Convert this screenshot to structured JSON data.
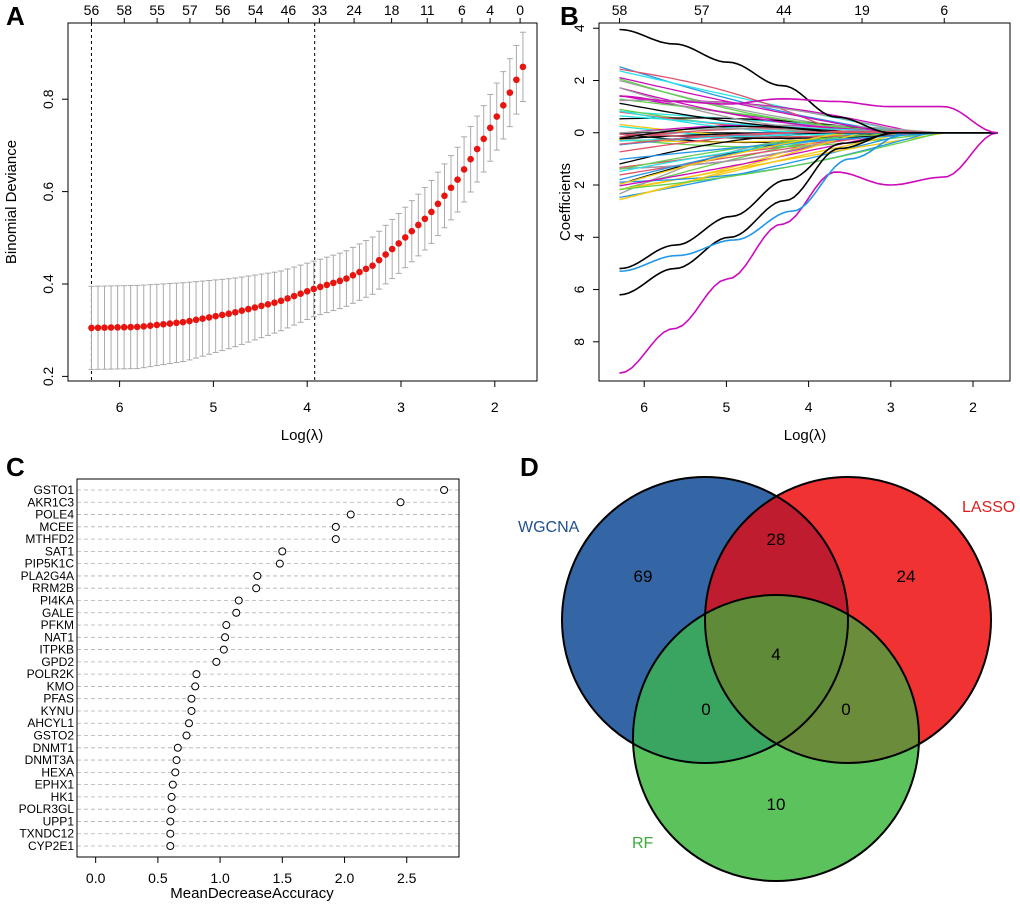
{
  "panels": {
    "A": "A",
    "B": "B",
    "C": "C",
    "D": "D"
  },
  "chart_data": [
    {
      "type": "line",
      "panel": "A",
      "description_kind": "LASSO cross-validation curve with error bars",
      "xlabel": "Log(λ)",
      "ylabel": "Binomial Deviance",
      "xlim": [
        6.55,
        1.55
      ],
      "ylim": [
        0.19,
        0.965
      ],
      "x_ticks": [
        6,
        5,
        4,
        3,
        2
      ],
      "y_ticks": [
        0.2,
        0.4,
        0.6,
        0.8
      ],
      "top_axis_positions": [
        6.3,
        5.95,
        5.6,
        5.25,
        4.9,
        4.55,
        4.2,
        3.87,
        3.5,
        3.1,
        2.72,
        2.35,
        2.05,
        1.73
      ],
      "top_axis_labels": [
        "56",
        "58",
        "55",
        "57",
        "56",
        "54",
        "46",
        "33",
        "24",
        "18",
        "11",
        "6",
        "4",
        "0"
      ],
      "vlines": [
        6.3,
        3.92
      ],
      "curve_start": {
        "x": 6.3,
        "y": 0.305
      },
      "curve_end": {
        "x": 1.7,
        "y": 0.87
      },
      "n_points": 67,
      "knots_x": [
        6.3,
        5.8,
        5.3,
        4.8,
        4.3,
        3.92,
        3.6,
        3.3,
        3.0,
        2.7,
        2.4,
        2.1,
        1.9,
        1.7
      ],
      "knots_y": [
        0.305,
        0.307,
        0.318,
        0.337,
        0.362,
        0.39,
        0.41,
        0.44,
        0.492,
        0.55,
        0.625,
        0.72,
        0.79,
        0.87
      ],
      "err_knots_y": [
        0.09,
        0.09,
        0.085,
        0.075,
        0.065,
        0.06,
        0.06,
        0.062,
        0.065,
        0.068,
        0.07,
        0.072,
        0.073,
        0.075
      ],
      "point_color": "#e8140f",
      "errorbar_color": "#aaaaaa"
    },
    {
      "type": "line",
      "panel": "B",
      "description_kind": "LASSO coefficient paths",
      "xlabel": "Log(λ)",
      "ylabel": "Coefficients",
      "xlim": [
        6.55,
        1.55
      ],
      "ylim": [
        -9.5,
        4.2
      ],
      "x_ticks": [
        6,
        5,
        4,
        3,
        2
      ],
      "y_ticks": [
        4,
        2,
        0,
        -2,
        -4,
        -6,
        -8
      ],
      "y_tick_labels": [
        "4",
        "2",
        "0",
        "2",
        "4",
        "6",
        "8"
      ],
      "top_axis_positions": [
        6.3,
        5.3,
        4.3,
        3.35,
        2.35
      ],
      "top_axis_labels": [
        "58",
        "57",
        "44",
        "19",
        "6"
      ],
      "x_start": 6.3,
      "x_end": 1.7,
      "path_colors": [
        "#000000",
        "#df536b",
        "#61d04f",
        "#2297e6",
        "#28e2e5",
        "#cd0bbc",
        "#f5c710",
        "#9e9e9e"
      ],
      "n_paths": 58,
      "special_paths": [
        {
          "color": "#000000",
          "zero_at": 3.0,
          "ys": [
            3.95,
            3.4,
            2.7,
            1.8,
            0.6,
            0
          ]
        },
        {
          "color": "#cd0bbc",
          "zero_at": 1.7,
          "ys": [
            -9.2,
            -7.5,
            -5.6,
            -3.5,
            -1.5,
            -2.0,
            -1.7,
            0
          ]
        },
        {
          "color": "#000000",
          "zero_at": 2.95,
          "ys": [
            -6.2,
            -5.2,
            -4.0,
            -2.6,
            -0.6,
            0
          ]
        },
        {
          "color": "#2297e6",
          "zero_at": 2.8,
          "ys": [
            -5.3,
            -4.7,
            -4.1,
            -3.0,
            -1.0,
            0
          ]
        },
        {
          "color": "#000000",
          "zero_at": 2.9,
          "ys": [
            -5.2,
            -4.3,
            -3.2,
            -1.8,
            -0.4,
            0
          ]
        },
        {
          "color": "#cd0bbc",
          "zero_at": 1.7,
          "ys": [
            1.4,
            1.2,
            1.1,
            1.3,
            1.2,
            1.0,
            1.0,
            0
          ]
        }
      ]
    },
    {
      "type": "scatter",
      "panel": "C",
      "description_kind": "Random forest variable importance dot chart",
      "xlabel": "MeanDecreaseAccuracy",
      "xlim": [
        -0.15,
        2.92
      ],
      "x_ticks": [
        0.0,
        0.5,
        1.0,
        1.5,
        2.0,
        2.5
      ],
      "x_tick_labels": [
        "0.0",
        "0.5",
        "1.0",
        "1.5",
        "2.0",
        "2.5"
      ],
      "categories": [
        "GSTO1",
        "AKR1C3",
        "POLE4",
        "MCEE",
        "MTHFD2",
        "SAT1",
        "PIP5K1C",
        "PLA2G4A",
        "RRM2B",
        "PI4KA",
        "GALE",
        "PFKM",
        "NAT1",
        "ITPKB",
        "GPD2",
        "POLR2K",
        "KMO",
        "PFAS",
        "KYNU",
        "AHCYL1",
        "GSTO2",
        "DNMT1",
        "DNMT3A",
        "HEXA",
        "EPHX1",
        "HK1",
        "POLR3GL",
        "UPP1",
        "TXNDC12",
        "CYP2E1"
      ],
      "values": [
        2.8,
        2.45,
        2.05,
        1.93,
        1.93,
        1.5,
        1.48,
        1.3,
        1.29,
        1.15,
        1.13,
        1.05,
        1.04,
        1.03,
        0.97,
        0.81,
        0.8,
        0.77,
        0.77,
        0.75,
        0.73,
        0.66,
        0.65,
        0.64,
        0.62,
        0.61,
        0.61,
        0.6,
        0.6,
        0.6
      ]
    },
    {
      "type": "venn",
      "panel": "D",
      "sets": [
        {
          "name": "WGCNA",
          "fill": "#3465a4",
          "label_color": "#20508c"
        },
        {
          "name": "LASSO",
          "fill": "#f03232",
          "label_color": "#e01e1e"
        },
        {
          "name": "RF",
          "fill": "#5cc35c",
          "label_color": "#3caa3c"
        }
      ],
      "regions": {
        "WGCNA_only": "69",
        "LASSO_only": "24",
        "RF_only": "10",
        "WGCNA_LASSO": "28",
        "WGCNA_RF": "0",
        "LASSO_RF": "0",
        "all": "4"
      }
    }
  ]
}
